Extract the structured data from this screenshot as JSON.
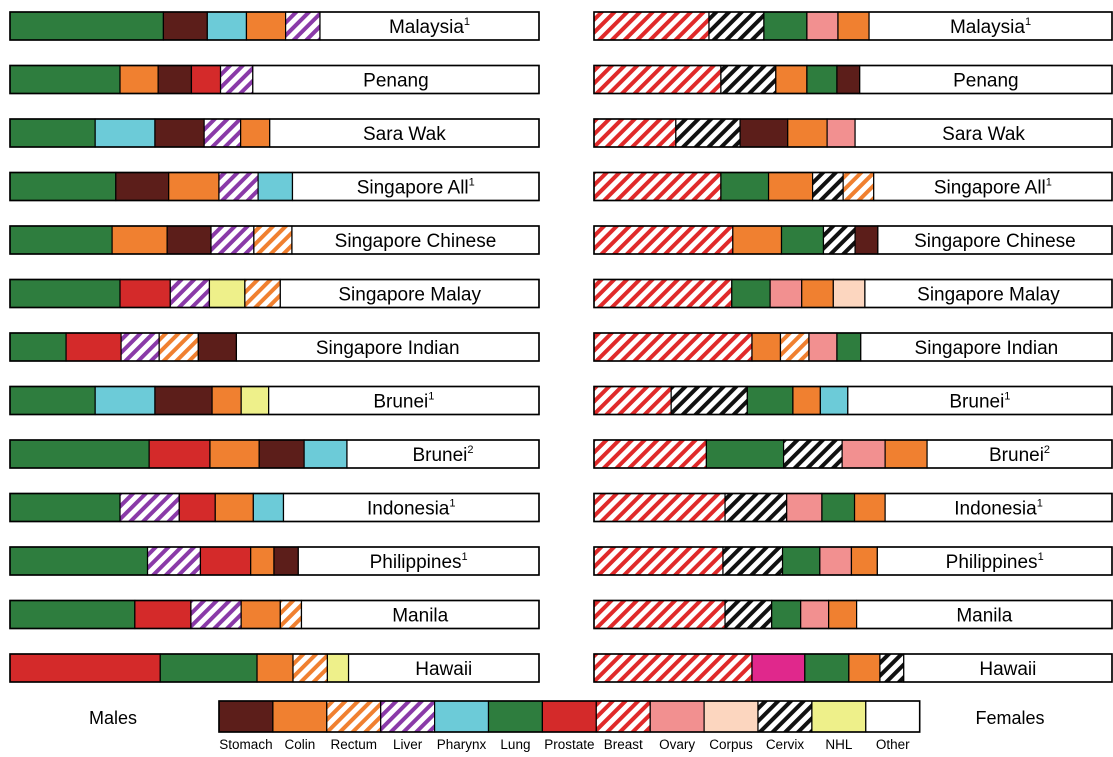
{
  "chart_data": {
    "type": "bar",
    "subtype": "stacked-horizontal-100pct",
    "panels": [
      {
        "name": "Males"
      },
      {
        "name": "Females"
      }
    ],
    "legend": {
      "placement": "bottom",
      "items": [
        {
          "label": "Stomach",
          "color": "#5c1e1a",
          "hatch": false
        },
        {
          "label": "Colin",
          "color": "#f08030",
          "hatch": false
        },
        {
          "label": "Rectum",
          "color": "#f08030",
          "hatch": true
        },
        {
          "label": "Liver",
          "color": "#8a3aa8",
          "hatch": true
        },
        {
          "label": "Pharynx",
          "color": "#6ccbd8",
          "hatch": false
        },
        {
          "label": "Lung",
          "color": "#2e7d3e",
          "hatch": false
        },
        {
          "label": "Prostate",
          "color": "#d42a2a",
          "hatch": false
        },
        {
          "label": "Breast",
          "color": "#e02a2a",
          "hatch": true
        },
        {
          "label": "Ovary",
          "color": "#f29090",
          "hatch": false
        },
        {
          "label": "Corpus",
          "color": "#fcd6bf",
          "hatch": false
        },
        {
          "label": "Cervix",
          "color": "#111111",
          "hatch": true
        },
        {
          "label": "NHL",
          "color": "#eef08a",
          "hatch": false
        },
        {
          "label": "Other",
          "color": "#ffffff",
          "hatch": false
        }
      ]
    },
    "rows": [
      {
        "label": "Malaysia",
        "sup": "1",
        "males": [
          [
            "Lung",
            29.0
          ],
          [
            "Stomach",
            8.3
          ],
          [
            "Pharynx",
            7.4
          ],
          [
            "Colin",
            7.4
          ],
          [
            "Liver",
            6.5
          ],
          [
            "Other",
            41.4
          ]
        ],
        "females": [
          [
            "Breast",
            22.2
          ],
          [
            "Cervix",
            10.6
          ],
          [
            "Lung",
            8.3
          ],
          [
            "Ovary",
            6.0
          ],
          [
            "Colin",
            6.0
          ],
          [
            "Other",
            46.9
          ]
        ]
      },
      {
        "label": "Penang",
        "sup": "",
        "males": [
          [
            "Lung",
            20.8
          ],
          [
            "Colin",
            7.2
          ],
          [
            "Stomach",
            6.3
          ],
          [
            "Prostate",
            5.5
          ],
          [
            "Liver",
            6.1
          ],
          [
            "Other",
            54.1
          ]
        ],
        "females": [
          [
            "Breast",
            24.5
          ],
          [
            "Cervix",
            10.6
          ],
          [
            "Colin",
            6.0
          ],
          [
            "Lung",
            5.8
          ],
          [
            "Stomach",
            4.4
          ],
          [
            "Other",
            48.7
          ]
        ]
      },
      {
        "label": "Sara Wak",
        "sup": "",
        "males": [
          [
            "Lung",
            16.1
          ],
          [
            "Pharynx",
            11.3
          ],
          [
            "Stomach",
            9.3
          ],
          [
            "Liver",
            6.9
          ],
          [
            "Colin",
            5.5
          ],
          [
            "Other",
            50.9
          ]
        ],
        "females": [
          [
            "Breast",
            15.8
          ],
          [
            "Cervix",
            12.4
          ],
          [
            "Stomach",
            9.2
          ],
          [
            "Colin",
            7.6
          ],
          [
            "Ovary",
            5.4
          ],
          [
            "Other",
            49.6
          ]
        ]
      },
      {
        "label": "Singapore All",
        "sup": "1",
        "males": [
          [
            "Lung",
            20.0
          ],
          [
            "Stomach",
            10.0
          ],
          [
            "Colin",
            9.5
          ],
          [
            "Liver",
            7.4
          ],
          [
            "Pharynx",
            6.5
          ],
          [
            "Other",
            46.6
          ]
        ],
        "females": [
          [
            "Breast",
            24.5
          ],
          [
            "Lung",
            9.2
          ],
          [
            "Colin",
            8.5
          ],
          [
            "Cervix",
            5.9
          ],
          [
            "Rectum",
            5.9
          ],
          [
            "Other",
            46.0
          ]
        ]
      },
      {
        "label": "Singapore Chinese",
        "sup": "",
        "males": [
          [
            "Lung",
            19.3
          ],
          [
            "Colin",
            10.4
          ],
          [
            "Stomach",
            8.3
          ],
          [
            "Liver",
            8.1
          ],
          [
            "Rectum",
            7.2
          ],
          [
            "Other",
            46.7
          ]
        ],
        "females": [
          [
            "Breast",
            26.8
          ],
          [
            "Colin",
            9.4
          ],
          [
            "Lung",
            8.1
          ],
          [
            "Cervix",
            6.1
          ],
          [
            "Stomach",
            4.4
          ],
          [
            "Other",
            45.2
          ]
        ]
      },
      {
        "label": "Singapore Malay",
        "sup": "",
        "males": [
          [
            "Lung",
            20.8
          ],
          [
            "Prostate",
            9.5
          ],
          [
            "Liver",
            7.4
          ],
          [
            "NHL",
            6.7
          ],
          [
            "Rectum",
            6.7
          ],
          [
            "Other",
            48.9
          ]
        ],
        "females": [
          [
            "Breast",
            26.6
          ],
          [
            "Lung",
            7.4
          ],
          [
            "Ovary",
            6.1
          ],
          [
            "Colin",
            6.1
          ],
          [
            "Corpus",
            6.1
          ],
          [
            "Other",
            47.7
          ]
        ]
      },
      {
        "label": "Singapore Indian",
        "sup": "",
        "males": [
          [
            "Lung",
            10.6
          ],
          [
            "Prostate",
            10.4
          ],
          [
            "Liver",
            7.2
          ],
          [
            "Rectum",
            7.4
          ],
          [
            "Stomach",
            7.2
          ],
          [
            "Other",
            57.2
          ]
        ],
        "females": [
          [
            "Breast",
            30.5
          ],
          [
            "Colin",
            5.5
          ],
          [
            "Rectum",
            5.5
          ],
          [
            "Ovary",
            5.4
          ],
          [
            "Lung",
            4.6
          ],
          [
            "Other",
            48.5
          ]
        ]
      },
      {
        "label": "Brunei",
        "sup": "1",
        "males": [
          [
            "Lung",
            16.1
          ],
          [
            "Pharynx",
            11.3
          ],
          [
            "Stomach",
            10.8
          ],
          [
            "Colin",
            5.5
          ],
          [
            "NHL",
            5.2
          ],
          [
            "Other",
            51.1
          ]
        ],
        "females": [
          [
            "Breast",
            14.9
          ],
          [
            "Cervix",
            14.7
          ],
          [
            "Lung",
            8.8
          ],
          [
            "Colin",
            5.3
          ],
          [
            "Pharynx",
            5.3
          ],
          [
            "Other",
            51.0
          ]
        ]
      },
      {
        "label": "Brunei",
        "sup": "2",
        "males": [
          [
            "Lung",
            26.3
          ],
          [
            "Prostate",
            11.5
          ],
          [
            "Colin",
            9.3
          ],
          [
            "Stomach",
            8.5
          ],
          [
            "Pharynx",
            8.1
          ],
          [
            "Other",
            36.3
          ]
        ],
        "females": [
          [
            "Breast",
            21.7
          ],
          [
            "Lung",
            14.9
          ],
          [
            "Cervix",
            11.3
          ],
          [
            "Ovary",
            8.3
          ],
          [
            "Colin",
            8.1
          ],
          [
            "Other",
            35.7
          ]
        ]
      },
      {
        "label": "Indonesia",
        "sup": "1",
        "males": [
          [
            "Lung",
            20.8
          ],
          [
            "Liver",
            11.2
          ],
          [
            "Prostate",
            6.8
          ],
          [
            "Colin",
            7.2
          ],
          [
            "Pharynx",
            5.7
          ],
          [
            "Other",
            48.3
          ]
        ],
        "females": [
          [
            "Breast",
            25.3
          ],
          [
            "Cervix",
            11.9
          ],
          [
            "Ovary",
            6.8
          ],
          [
            "Lung",
            6.3
          ],
          [
            "Colin",
            5.9
          ],
          [
            "Other",
            43.8
          ]
        ]
      },
      {
        "label": "Philippines",
        "sup": "1",
        "males": [
          [
            "Lung",
            26.0
          ],
          [
            "Liver",
            10.0
          ],
          [
            "Prostate",
            9.5
          ],
          [
            "Colin",
            4.4
          ],
          [
            "Stomach",
            4.6
          ],
          [
            "Other",
            45.5
          ]
        ],
        "females": [
          [
            "Breast",
            24.9
          ],
          [
            "Cervix",
            11.5
          ],
          [
            "Lung",
            7.2
          ],
          [
            "Ovary",
            6.1
          ],
          [
            "Colin",
            5.0
          ],
          [
            "Other",
            45.3
          ]
        ]
      },
      {
        "label": "Manila",
        "sup": "",
        "males": [
          [
            "Lung",
            23.6
          ],
          [
            "Prostate",
            10.6
          ],
          [
            "Liver",
            9.5
          ],
          [
            "Colin",
            7.4
          ],
          [
            "Rectum",
            4.0
          ],
          [
            "Other",
            44.9
          ]
        ],
        "females": [
          [
            "Breast",
            25.3
          ],
          [
            "Cervix",
            9.0
          ],
          [
            "Lung",
            5.6
          ],
          [
            "Ovary",
            5.4
          ],
          [
            "Colin",
            5.4
          ],
          [
            "Other",
            49.3
          ]
        ]
      },
      {
        "label": "Hawaii",
        "sup": "",
        "males": [
          [
            "Prostate",
            28.4
          ],
          [
            "Lung",
            18.3
          ],
          [
            "Colin",
            6.8
          ],
          [
            "Rectum",
            6.5
          ],
          [
            "NHL",
            4.0
          ],
          [
            "Other",
            36.0
          ]
        ],
        "females": [
          [
            "Breast",
            30.5
          ],
          [
            "Other_magenta",
            10.2
          ],
          [
            "Lung",
            8.5
          ],
          [
            "Colin",
            6.0
          ],
          [
            "Cervix",
            4.6
          ],
          [
            "Other",
            40.2
          ]
        ]
      }
    ]
  }
}
